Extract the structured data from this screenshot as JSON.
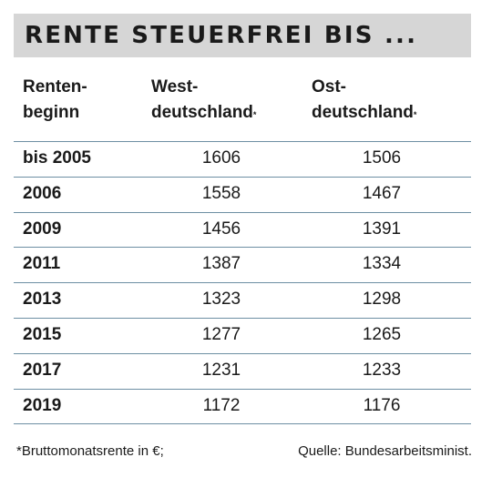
{
  "title": "RENTE STEUERFREI BIS ...",
  "columns": {
    "col1_line1": "Renten-",
    "col1_line2": "beginn",
    "col2_line1": "West-",
    "col2_line2": "deutschland",
    "col3_line1": "Ost-",
    "col3_line2": "deutschland",
    "asterisk": "*"
  },
  "rows": [
    {
      "year": "bis 2005",
      "west": "1606",
      "ost": "1506"
    },
    {
      "year": "2006",
      "west": "1558",
      "ost": "1467"
    },
    {
      "year": "2009",
      "west": "1456",
      "ost": "1391"
    },
    {
      "year": "2011",
      "west": "1387",
      "ost": "1334"
    },
    {
      "year": "2013",
      "west": "1323",
      "ost": "1298"
    },
    {
      "year": "2015",
      "west": "1277",
      "ost": "1265"
    },
    {
      "year": "2017",
      "west": "1231",
      "ost": "1233"
    },
    {
      "year": "2019",
      "west": "1172",
      "ost": "1176"
    }
  ],
  "footer": {
    "note": "*Bruttomonatsrente in €;",
    "source": "Quelle: Bundesarbeitsminist."
  },
  "colors": {
    "title_bg": "#d6d6d6",
    "rule": "#6d8fa3",
    "text": "#1a1a1a"
  }
}
